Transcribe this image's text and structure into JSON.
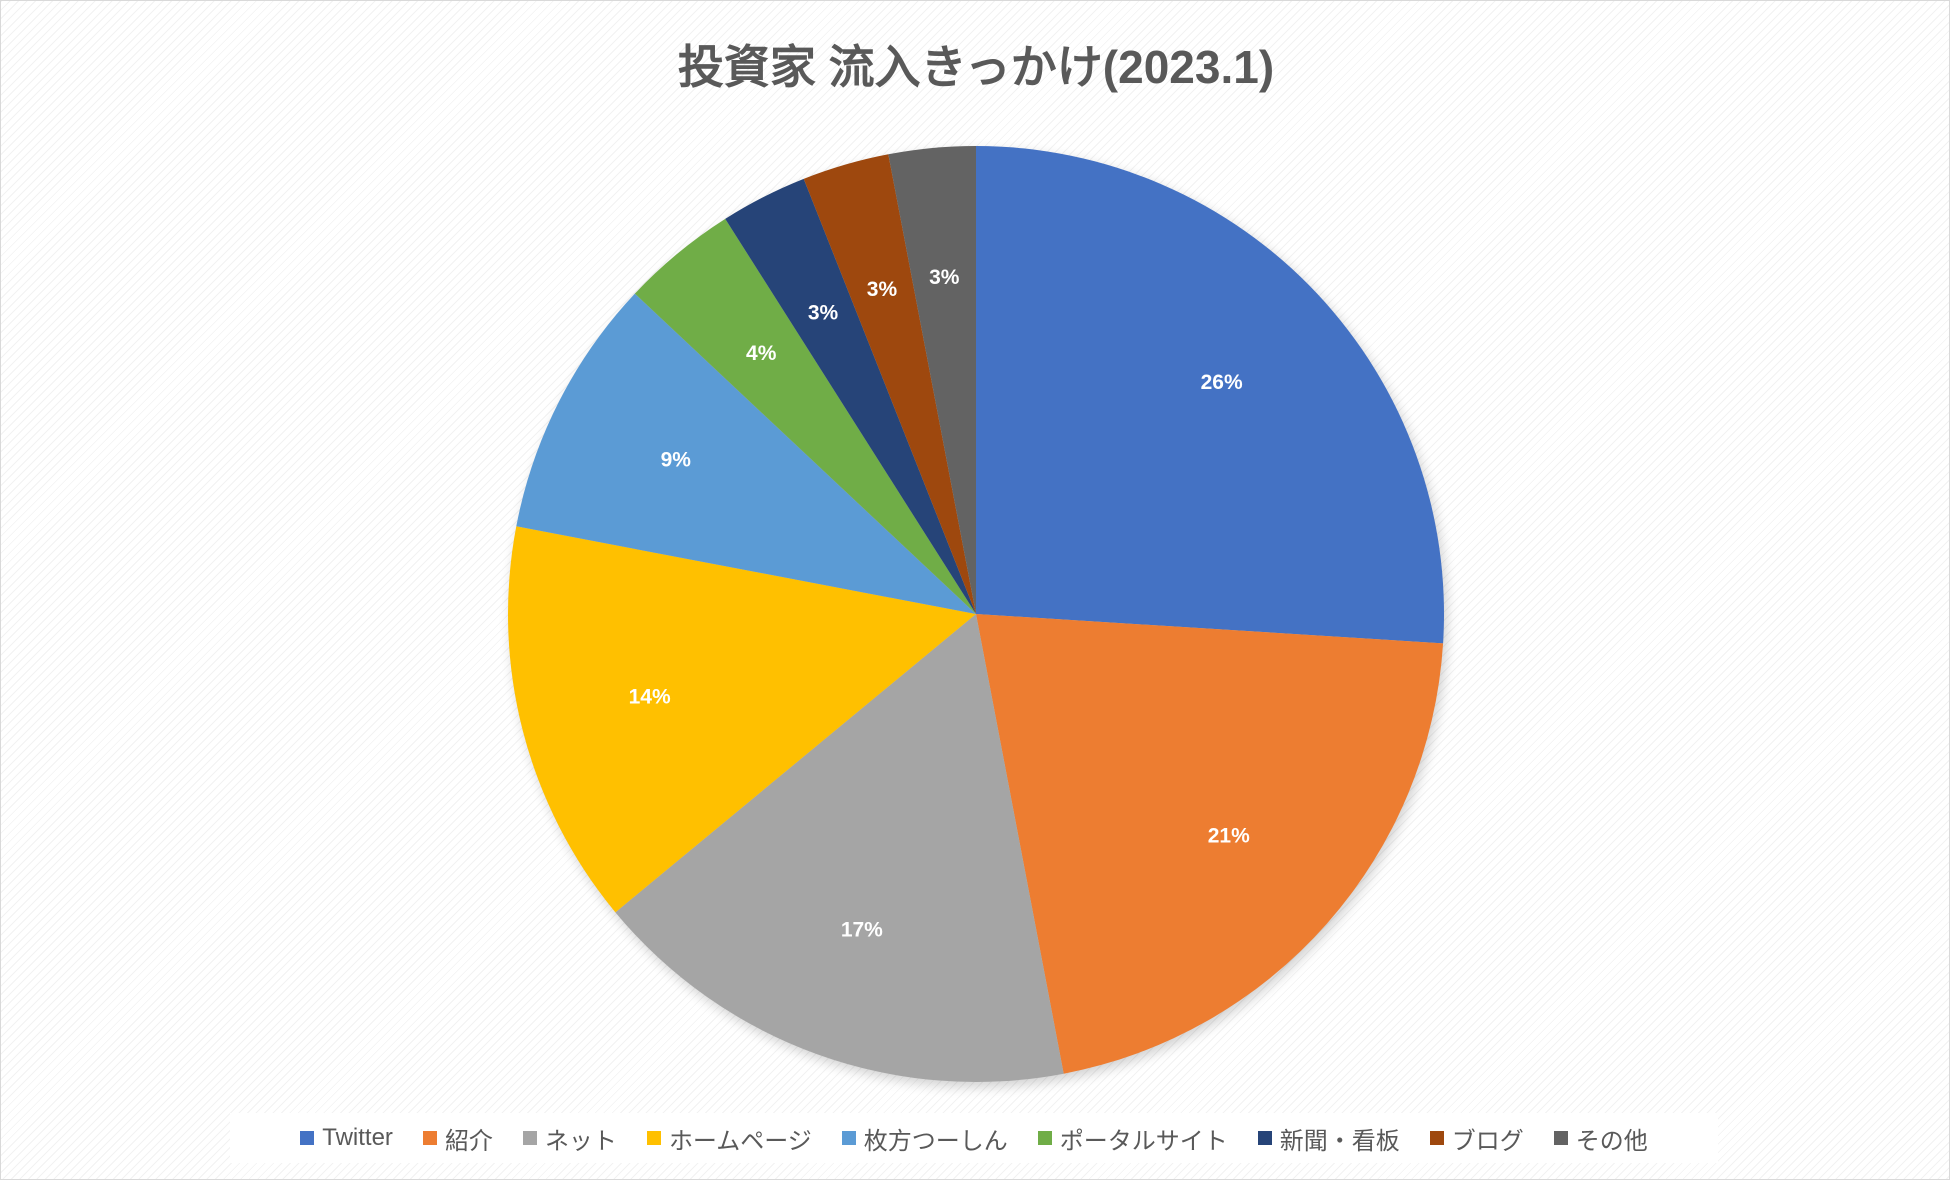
{
  "chart_data": {
    "type": "pie",
    "title": "投資家 流入きっかけ(2023.1)",
    "slices": [
      {
        "name": "Twitter",
        "value": 26,
        "label": "26%",
        "color": "#4472C4"
      },
      {
        "name": "紹介",
        "value": 21,
        "label": "21%",
        "color": "#ED7D31"
      },
      {
        "name": "ネット",
        "value": 17,
        "label": "17%",
        "color": "#A5A5A5"
      },
      {
        "name": "ホームページ",
        "value": 14,
        "label": "14%",
        "color": "#FFC000"
      },
      {
        "name": "枚方つーしん",
        "value": 9,
        "label": "9%",
        "color": "#5B9BD5"
      },
      {
        "name": "ポータルサイト",
        "value": 4,
        "label": "4%",
        "color": "#70AD47"
      },
      {
        "name": "新聞・看板",
        "value": 3,
        "label": "3%",
        "color": "#264478"
      },
      {
        "name": "ブログ",
        "value": 3,
        "label": "3%",
        "color": "#9E480E"
      },
      {
        "name": "その他",
        "value": 3,
        "label": "3%",
        "color": "#636363"
      }
    ],
    "legend_position": "bottom",
    "data_label_color": "#FFFFFF"
  }
}
